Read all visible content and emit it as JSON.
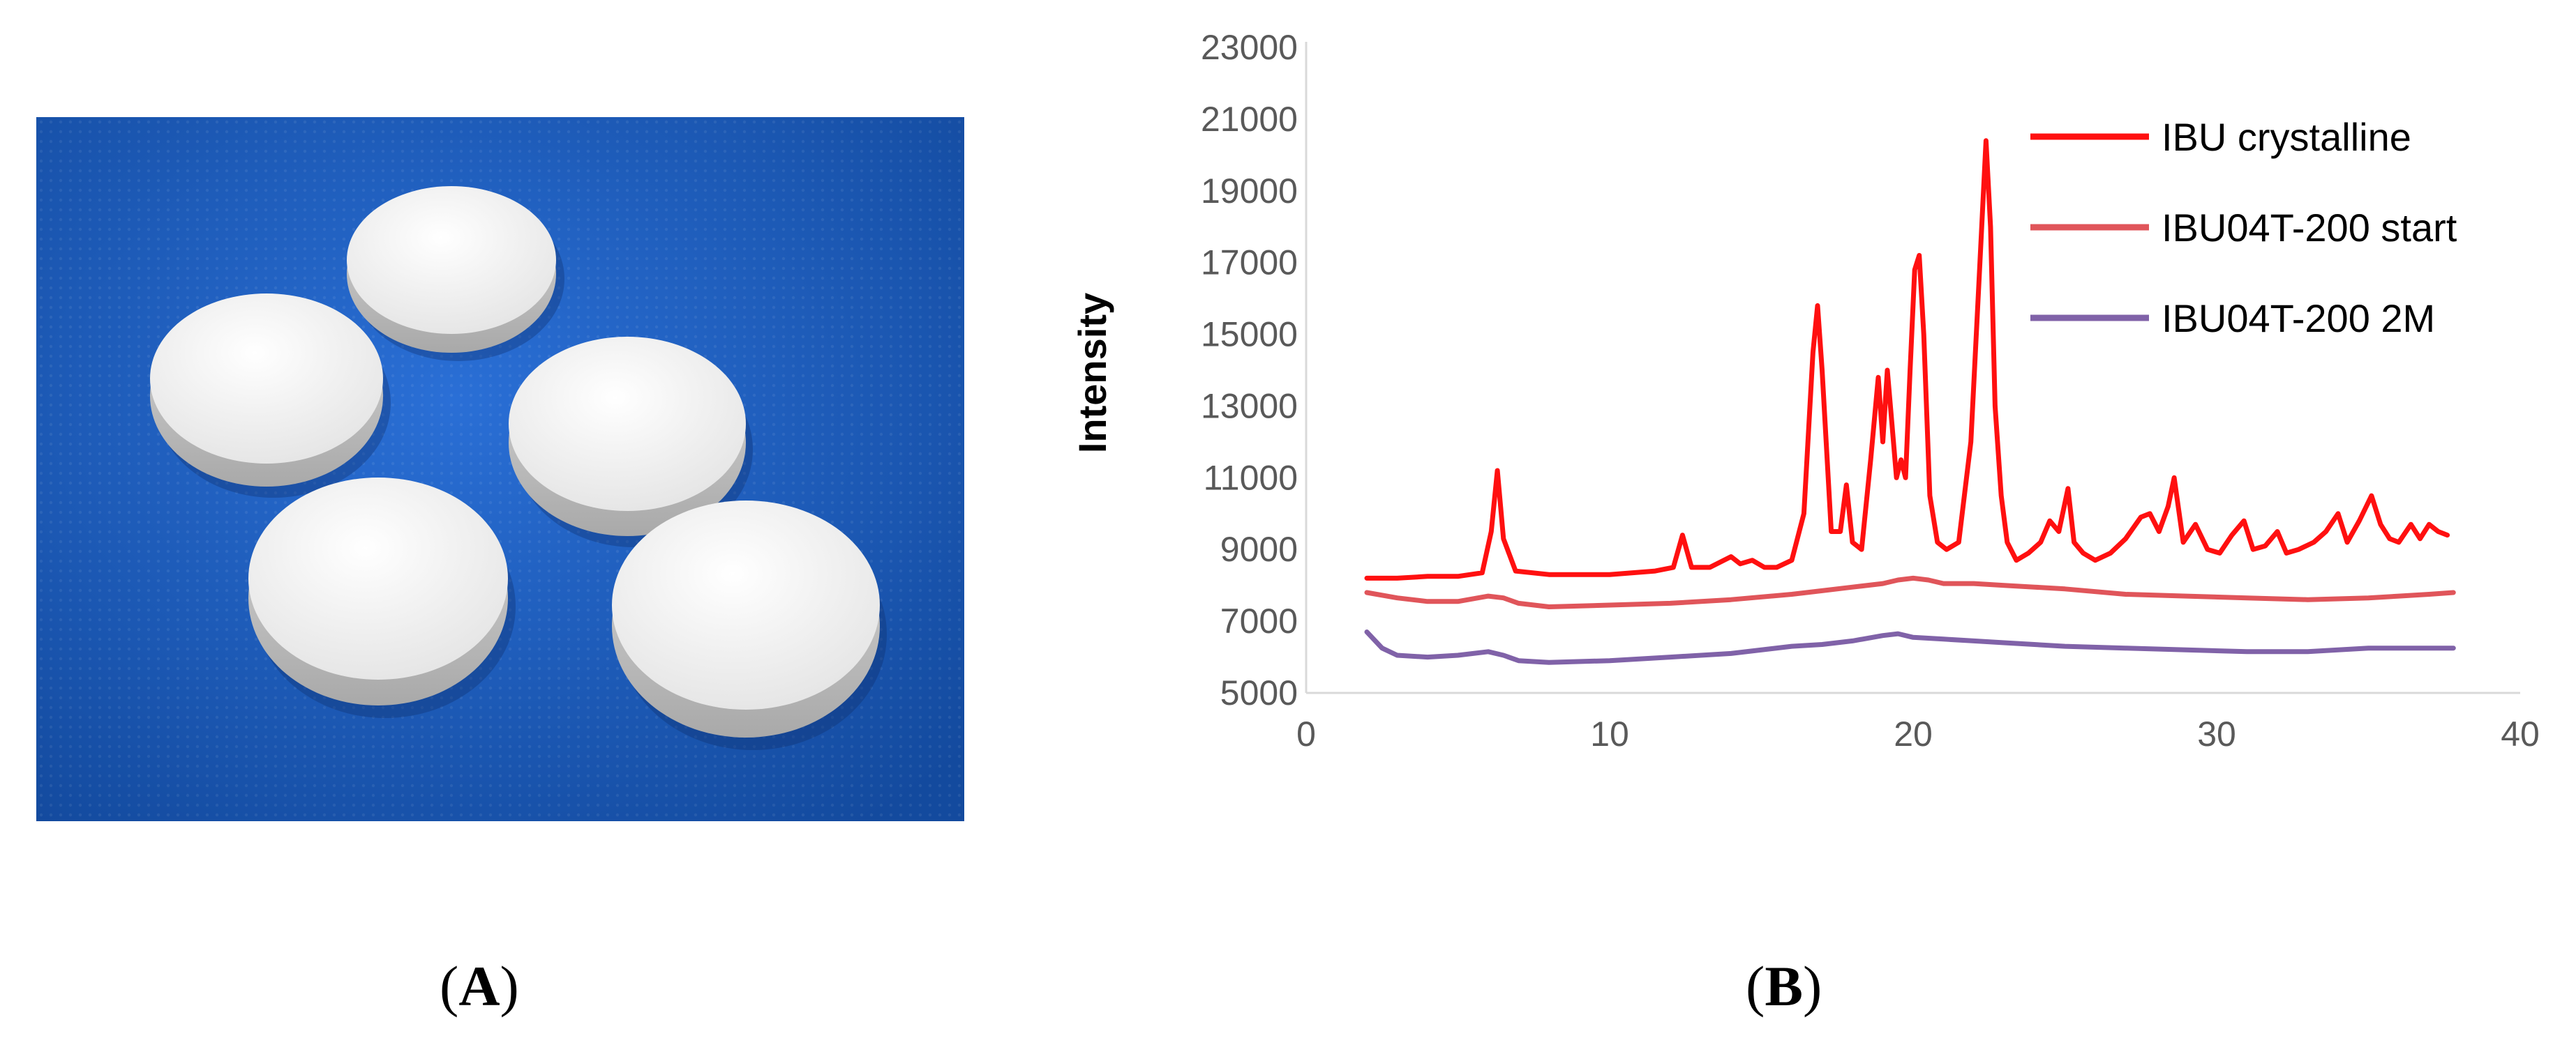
{
  "panels": {
    "a_label": "A",
    "b_label": "B"
  },
  "photo": {
    "background": "#1f5fc4",
    "tablet_color": "#f2f2f2"
  },
  "chart_data": {
    "type": "line",
    "title": "",
    "xlabel": "",
    "ylabel": "Intensity",
    "xlim": [
      0,
      40
    ],
    "ylim": [
      5000,
      23000
    ],
    "xticks": [
      0,
      10,
      20,
      30,
      40
    ],
    "yticks": [
      5000,
      7000,
      9000,
      11000,
      13000,
      15000,
      17000,
      19000,
      21000,
      23000
    ],
    "grid": false,
    "legend_position": "top-right",
    "series": [
      {
        "name": "IBU crystalline",
        "color": "#ff1010",
        "x": [
          2,
          3,
          4,
          5,
          5.8,
          6.1,
          6.3,
          6.5,
          6.9,
          8,
          10,
          11.5,
          12.1,
          12.4,
          12.7,
          13.3,
          14,
          14.3,
          14.7,
          15.1,
          15.5,
          16,
          16.4,
          16.7,
          16.85,
          17,
          17.3,
          17.6,
          17.8,
          18,
          18.3,
          18.6,
          18.85,
          19,
          19.15,
          19.3,
          19.45,
          19.6,
          19.75,
          19.9,
          20.05,
          20.2,
          20.35,
          20.55,
          20.8,
          21.1,
          21.5,
          21.9,
          22.2,
          22.4,
          22.55,
          22.7,
          22.9,
          23.1,
          23.4,
          23.8,
          24.2,
          24.5,
          24.8,
          25.1,
          25.3,
          25.6,
          26,
          26.5,
          27,
          27.5,
          27.8,
          28.1,
          28.4,
          28.6,
          28.9,
          29.3,
          29.7,
          30.1,
          30.5,
          30.9,
          31.2,
          31.6,
          32,
          32.3,
          32.7,
          33.2,
          33.6,
          34,
          34.3,
          34.7,
          35.1,
          35.4,
          35.7,
          36,
          36.4,
          36.7,
          37,
          37.3,
          37.6
        ],
        "y": [
          8200,
          8200,
          8250,
          8250,
          8350,
          9500,
          11200,
          9300,
          8400,
          8300,
          8300,
          8400,
          8500,
          9400,
          8500,
          8500,
          8800,
          8600,
          8700,
          8500,
          8500,
          8700,
          10000,
          14500,
          15800,
          14000,
          9500,
          9500,
          10800,
          9200,
          9000,
          11500,
          13800,
          12000,
          14000,
          12500,
          11000,
          11500,
          11000,
          14000,
          16800,
          17200,
          15000,
          10500,
          9200,
          9000,
          9200,
          12000,
          17000,
          20400,
          18000,
          13000,
          10500,
          9200,
          8700,
          8900,
          9200,
          9800,
          9500,
          10700,
          9200,
          8900,
          8700,
          8900,
          9300,
          9900,
          10000,
          9500,
          10200,
          11000,
          9200,
          9700,
          9000,
          8900,
          9400,
          9800,
          9000,
          9100,
          9500,
          8900,
          9000,
          9200,
          9500,
          10000,
          9200,
          9800,
          10500,
          9700,
          9300,
          9200,
          9700,
          9300,
          9700,
          9500,
          9400
        ]
      },
      {
        "name": "IBU04T-200 start",
        "color": "#e0555a",
        "x": [
          2,
          3,
          4,
          5,
          6,
          6.5,
          7,
          8,
          10,
          12,
          14,
          16,
          17,
          18,
          19,
          19.5,
          20,
          20.5,
          21,
          22,
          23,
          24,
          25,
          27,
          29,
          31,
          33,
          35,
          36,
          37,
          37.8
        ],
        "y": [
          7800,
          7650,
          7550,
          7550,
          7700,
          7650,
          7500,
          7400,
          7450,
          7500,
          7600,
          7750,
          7850,
          7950,
          8050,
          8150,
          8200,
          8150,
          8050,
          8050,
          8000,
          7950,
          7900,
          7750,
          7700,
          7650,
          7600,
          7650,
          7700,
          7750,
          7800
        ]
      },
      {
        "name": "IBU04T-200 2M",
        "color": "#8062a8",
        "x": [
          2,
          2.5,
          3,
          4,
          5,
          6,
          6.5,
          7,
          8,
          10,
          12,
          14,
          16,
          17,
          18,
          19,
          19.5,
          20,
          21,
          22,
          23,
          25,
          27,
          29,
          31,
          33,
          34,
          35,
          36,
          37,
          37.8
        ],
        "y": [
          6700,
          6250,
          6050,
          6000,
          6050,
          6150,
          6050,
          5900,
          5850,
          5900,
          6000,
          6100,
          6300,
          6350,
          6450,
          6600,
          6650,
          6550,
          6500,
          6450,
          6400,
          6300,
          6250,
          6200,
          6150,
          6150,
          6200,
          6250,
          6250,
          6250,
          6250
        ]
      }
    ]
  }
}
